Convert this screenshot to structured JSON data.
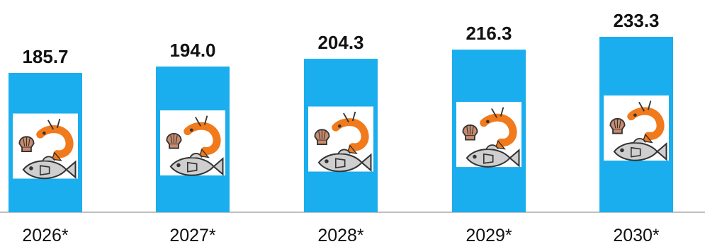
{
  "chart_data": {
    "type": "bar",
    "categories": [
      "2026*",
      "2027*",
      "2028*",
      "2029*",
      "2030*"
    ],
    "values": [
      185.7,
      194.0,
      204.3,
      216.3,
      233.3
    ],
    "value_labels": [
      "185.7",
      "194.0",
      "204.3",
      "216.3",
      "233.3"
    ],
    "title": "",
    "xlabel": "",
    "ylabel": "",
    "ylim": [
      0,
      240
    ],
    "grid": false,
    "legend": "none",
    "bar_color": "#1aaeee",
    "bar_icon": "seafood-icon"
  }
}
